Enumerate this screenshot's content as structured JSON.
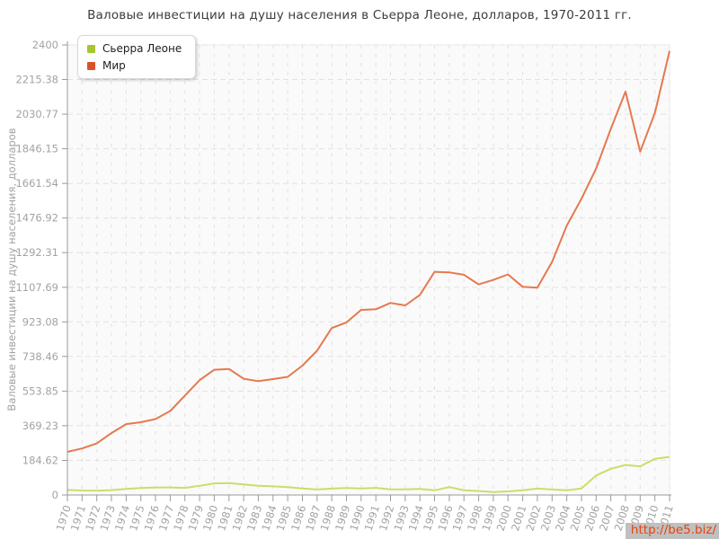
{
  "title": "Валовые инвестиции на душу населения в Сьерра Леоне, долларов, 1970-2011 гг.",
  "watermark": {
    "text": "http://be5.biz/",
    "color": "#e8430a",
    "bg": "#c0c0c0"
  },
  "chart_data": {
    "type": "line",
    "title": "Валовые инвестиции на душу населения в Сьерра Леоне, долларов, 1970-2011 гг.",
    "xlabel": "",
    "ylabel": "Валовые инвестиции на душу населения, долларов",
    "ylim": [
      0,
      2400
    ],
    "y_ticks": [
      0,
      184.62,
      369.23,
      553.85,
      738.46,
      923.08,
      1107.69,
      1292.31,
      1476.92,
      1661.54,
      1846.15,
      2030.77,
      2215.38,
      2400
    ],
    "y_tick_labels": [
      "0",
      "184.62",
      "369.23",
      "553.85",
      "738.46",
      "923.08",
      "1107.69",
      "1292.31",
      "1476.92",
      "1661.54",
      "1846.15",
      "2030.77",
      "2215.38",
      "2400"
    ],
    "x": [
      1970,
      1971,
      1972,
      1973,
      1974,
      1975,
      1976,
      1977,
      1978,
      1979,
      1980,
      1981,
      1982,
      1983,
      1984,
      1985,
      1986,
      1987,
      1988,
      1989,
      1990,
      1991,
      1992,
      1993,
      1994,
      1995,
      1996,
      1997,
      1998,
      1999,
      2000,
      2001,
      2002,
      2003,
      2004,
      2005,
      2006,
      2007,
      2008,
      2009,
      2010,
      2011
    ],
    "grid": "dashed-both-axes",
    "legend_position": "top-left",
    "series": [
      {
        "name": "Сьерра Леоне",
        "marker_color": "#a9c52e",
        "line_color": "#c8df68",
        "values": [
          27,
          24,
          23,
          26,
          32,
          37,
          40,
          40,
          38,
          49,
          62,
          63,
          56,
          49,
          46,
          42,
          35,
          29,
          34,
          37,
          35,
          38,
          30,
          30,
          32,
          25,
          42,
          25,
          21,
          16,
          19,
          25,
          34,
          29,
          25,
          35,
          104,
          140,
          160,
          153,
          193,
          203
        ]
      },
      {
        "name": "Мир",
        "marker_color": "#d9532a",
        "line_color": "#e5794f",
        "values": [
          230,
          248,
          275,
          330,
          378,
          388,
          405,
          448,
          530,
          612,
          668,
          672,
          620,
          607,
          618,
          630,
          690,
          770,
          890,
          920,
          987,
          990,
          1024,
          1011,
          1067,
          1190,
          1187,
          1174,
          1123,
          1147,
          1176,
          1110,
          1105,
          1243,
          1436,
          1580,
          1741,
          1952,
          2151,
          1831,
          2038,
          2368
        ]
      }
    ],
    "style": {
      "plot_bg": "#fafafa",
      "plot_border": "#ececec",
      "grid_color": "#e2e2e2",
      "axis_color": "#9a9a9a",
      "tick_label_color": "#a3a3a3",
      "title_color": "#3c3c3c"
    }
  }
}
